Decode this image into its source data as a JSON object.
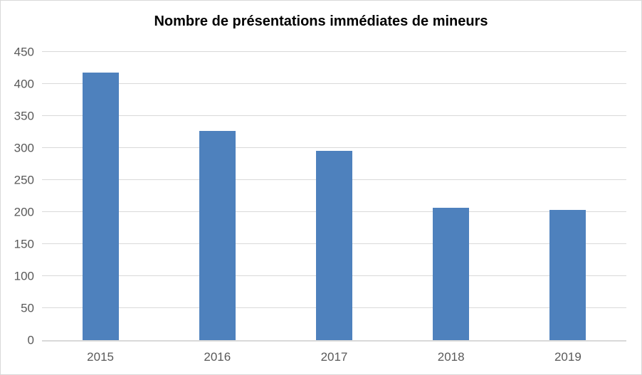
{
  "chart_data": {
    "type": "bar",
    "title": "Nombre de présentations immédiates de mineurs",
    "categories": [
      "2015",
      "2016",
      "2017",
      "2018",
      "2019"
    ],
    "values": [
      418,
      327,
      295,
      207,
      203
    ],
    "xlabel": "",
    "ylabel": "",
    "ylim": [
      0,
      450
    ],
    "y_ticks": [
      0,
      50,
      100,
      150,
      200,
      250,
      300,
      350,
      400,
      450
    ],
    "grid": true,
    "legend": false,
    "bar_color": "#4e81bd",
    "gridline_color": "#d9d9d9",
    "axis_line_color": "#d9d9d9",
    "tick_label_color": "#595959",
    "title_color": "#000000",
    "background_color": "#ffffff",
    "border_color": "#d9d9d9"
  }
}
